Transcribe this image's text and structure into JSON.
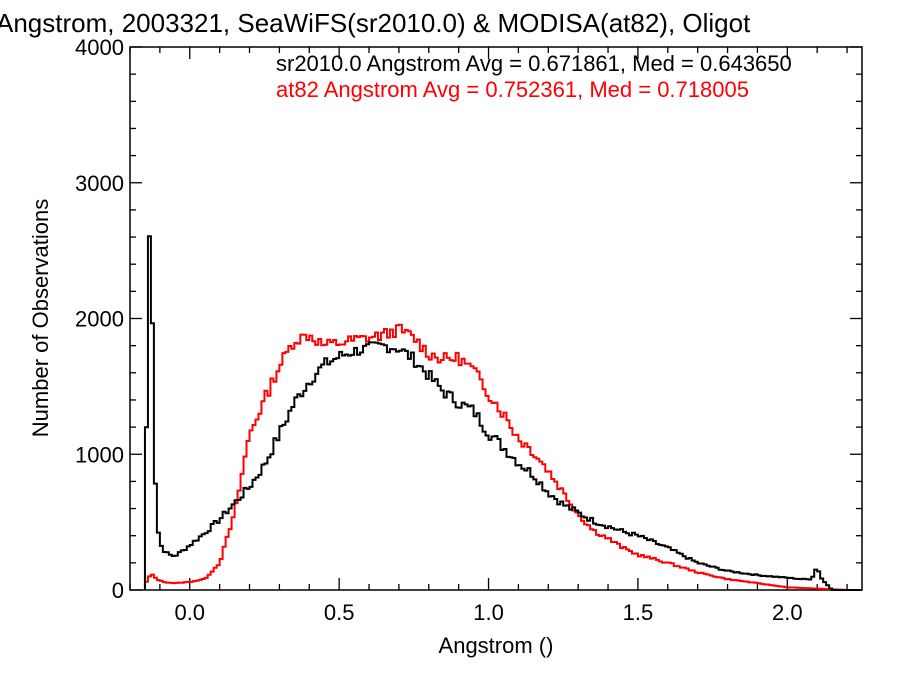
{
  "chart_data": {
    "type": "line",
    "title": "Angstrom, 2003321, SeaWiFS(sr2010.0) & MODISA(at82), Oligot",
    "xlabel": "Angstrom ()",
    "ylabel": "Number of Observations",
    "xlim": [
      -0.2,
      2.25
    ],
    "ylim": [
      0,
      4000
    ],
    "xticks": [
      0.0,
      0.5,
      1.0,
      1.5,
      2.0
    ],
    "xtick_labels": [
      "0.0",
      "0.5",
      "1.0",
      "1.5",
      "2.0"
    ],
    "yticks": [
      0,
      1000,
      2000,
      3000,
      4000
    ],
    "ytick_labels": [
      "0",
      "1000",
      "2000",
      "3000",
      "4000"
    ],
    "grid": false,
    "legend_position": "top-right",
    "series": [
      {
        "name": "sr2010.0",
        "color": "#000000",
        "legend_text": "sr2010.0 Angstrom Avg = 0.671861, Med = 0.643650",
        "x": [
          -0.15,
          -0.14,
          -0.13,
          -0.12,
          -0.11,
          -0.1,
          -0.09,
          -0.07,
          -0.05,
          -0.03,
          0.0,
          0.05,
          0.1,
          0.15,
          0.2,
          0.25,
          0.3,
          0.35,
          0.4,
          0.45,
          0.5,
          0.55,
          0.6,
          0.65,
          0.7,
          0.75,
          0.8,
          0.85,
          0.9,
          0.95,
          1.0,
          1.05,
          1.1,
          1.15,
          1.2,
          1.25,
          1.3,
          1.35,
          1.4,
          1.45,
          1.5,
          1.6,
          1.7,
          1.8,
          1.9,
          2.0,
          2.05,
          2.08,
          2.09,
          2.1,
          2.11,
          2.12,
          2.15
        ],
        "y": [
          100,
          2300,
          2900,
          1100,
          500,
          350,
          300,
          260,
          250,
          280,
          330,
          420,
          520,
          640,
          760,
          920,
          1150,
          1380,
          1540,
          1660,
          1720,
          1760,
          1780,
          1800,
          1780,
          1700,
          1580,
          1460,
          1380,
          1320,
          1160,
          1050,
          940,
          850,
          720,
          630,
          570,
          510,
          470,
          430,
          400,
          310,
          200,
          140,
          110,
          90,
          80,
          80,
          120,
          180,
          100,
          70,
          0
        ]
      },
      {
        "name": "at82",
        "color": "#ff0000",
        "legend_text": "at82 Angstrom Avg = 0.752361, Med = 0.718005",
        "x": [
          -0.15,
          -0.13,
          -0.11,
          -0.09,
          -0.05,
          0.0,
          0.05,
          0.1,
          0.15,
          0.2,
          0.25,
          0.3,
          0.35,
          0.4,
          0.45,
          0.5,
          0.55,
          0.6,
          0.65,
          0.7,
          0.75,
          0.8,
          0.85,
          0.9,
          0.95,
          1.0,
          1.05,
          1.1,
          1.15,
          1.2,
          1.25,
          1.3,
          1.35,
          1.4,
          1.45,
          1.5,
          1.6,
          1.7,
          1.8,
          1.9,
          2.0,
          2.1,
          2.2
        ],
        "y": [
          40,
          120,
          80,
          60,
          50,
          60,
          80,
          200,
          560,
          1150,
          1400,
          1650,
          1840,
          1880,
          1800,
          1820,
          1840,
          1860,
          1880,
          1920,
          1860,
          1740,
          1700,
          1710,
          1620,
          1450,
          1300,
          1120,
          1020,
          880,
          720,
          560,
          440,
          380,
          310,
          260,
          200,
          130,
          80,
          50,
          20,
          10,
          0
        ]
      }
    ]
  }
}
